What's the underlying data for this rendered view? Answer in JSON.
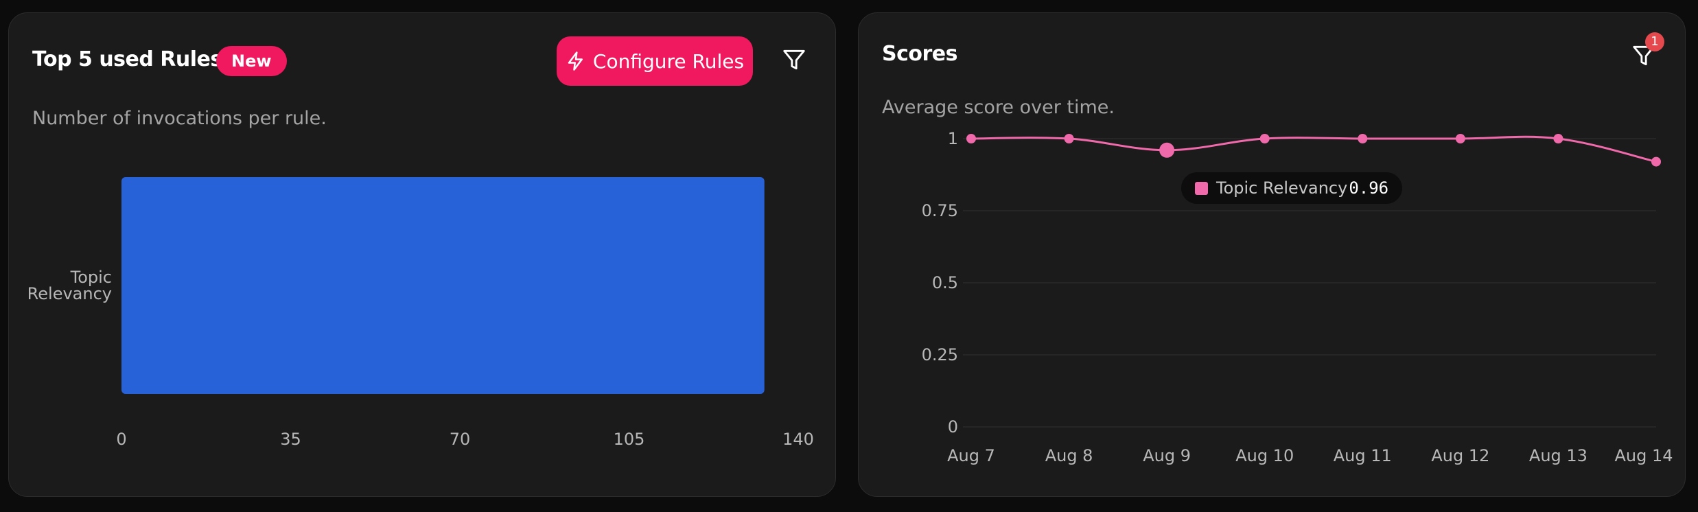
{
  "left_panel": {
    "title": "Top 5 used Rules",
    "badge": "New",
    "configure_button": "Configure Rules",
    "subtitle": "Number of invocations per rule.",
    "icons": [
      "lightning-icon",
      "filter-icon"
    ]
  },
  "right_panel": {
    "title": "Scores",
    "subtitle": "Average score over time.",
    "filter_count": "1",
    "icons": [
      "filter-icon"
    ],
    "tooltip": {
      "label": "Topic Relevancy",
      "value": "0.96"
    }
  },
  "colors": {
    "background": "#0c0c0c",
    "card": "#1b1b1b",
    "accent": "#f0195f",
    "bar": "#2762d8",
    "line": "#f06aab",
    "badge_red": "#e5484d"
  },
  "chart_data": [
    {
      "type": "bar",
      "orientation": "horizontal",
      "categories": [
        "Topic Relevancy"
      ],
      "category_lines": [
        [
          "Topic",
          "Relevancy"
        ]
      ],
      "values": [
        133
      ],
      "xlim": [
        0,
        140
      ],
      "xticks": [
        "0",
        "35",
        "70",
        "105",
        "140"
      ],
      "grid": false
    },
    {
      "type": "line",
      "x": [
        "Aug 7",
        "Aug 8",
        "Aug 9",
        "Aug 10",
        "Aug 11",
        "Aug 12",
        "Aug 13",
        "Aug 14"
      ],
      "series": [
        {
          "name": "Topic Relevancy",
          "values": [
            1,
            1,
            0.96,
            1,
            1,
            1,
            1,
            0.92
          ]
        }
      ],
      "ylim": [
        0,
        1
      ],
      "yticks": [
        "0",
        "0.25",
        "0.5",
        "0.75",
        "1"
      ],
      "highlighted_index": 2,
      "grid": true
    }
  ]
}
